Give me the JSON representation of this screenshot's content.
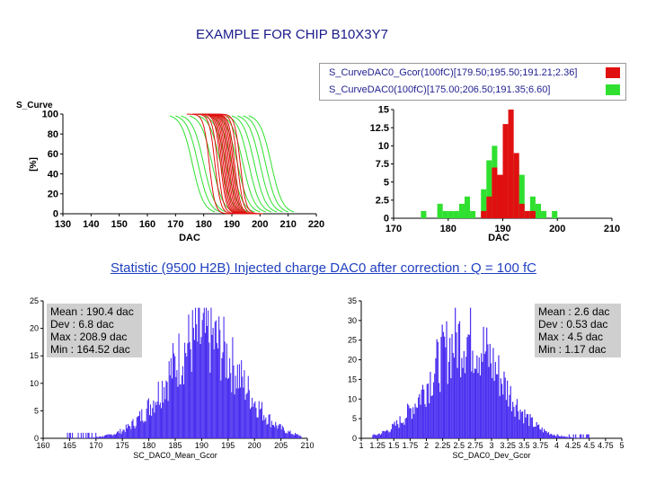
{
  "header": {
    "title": "EXAMPLE FOR CHIP B10X3Y7",
    "stat_title": "Statistic (9500 H2B) Injected charge DAC0 after correction : Q = 100 fC"
  },
  "legend": {
    "items": [
      {
        "label": "S_CurveDAC0_Gcor(100fC)[179.50;195.50;191.21;2.36]",
        "color": "#e01010"
      },
      {
        "label": "S_CurveDAC0(100fC)[175.00;206.50;191.35;6.60]",
        "color": "#30e030"
      }
    ]
  },
  "stats_left": {
    "mean": "Mean : 190.4 dac",
    "dev": "Dev : 6.8 dac",
    "max": "Max : 208.9 dac",
    "min": "Min : 164.52 dac"
  },
  "stats_right": {
    "mean": "Mean : 2.6 dac",
    "dev": "Dev : 0.53 dac",
    "max": "Max : 4.5 dac",
    "min": "Min : 1.17 dac"
  },
  "chart_data": [
    {
      "type": "line",
      "title": "S_Curve",
      "xlabel": "DAC",
      "ylabel": "[%]",
      "xlim": [
        130,
        220
      ],
      "ylim": [
        0,
        100
      ],
      "xticks": [
        130,
        140,
        150,
        160,
        170,
        180,
        190,
        200,
        210,
        220
      ],
      "yticks": [
        0,
        20,
        40,
        60,
        80,
        100
      ],
      "series": [
        {
          "color": "#e01010",
          "midpoints": [
            182,
            184,
            185,
            186,
            186.5,
            187,
            187.5,
            188,
            188.5,
            189,
            189.5,
            190,
            190.5,
            191,
            192,
            193
          ]
        },
        {
          "color": "#30e030",
          "midpoints": [
            176,
            178,
            180,
            183,
            186,
            188,
            190,
            192,
            194,
            196,
            198,
            200,
            202,
            204
          ]
        }
      ]
    },
    {
      "type": "bar",
      "xlabel": "DAC",
      "xlim": [
        170,
        210
      ],
      "ylim": [
        0,
        15
      ],
      "xticks": [
        170,
        180,
        190,
        200,
        210
      ],
      "yticks": [
        0,
        2.5,
        5,
        7.5,
        10,
        12.5,
        15
      ],
      "bin_width": 1,
      "series": [
        {
          "color": "#30e030",
          "bins": [
            [
              175,
              1
            ],
            [
              178,
              2
            ],
            [
              179,
              1
            ],
            [
              180,
              1
            ],
            [
              181,
              1
            ],
            [
              182,
              2
            ],
            [
              183,
              3
            ],
            [
              184,
              1
            ],
            [
              186,
              4
            ],
            [
              187,
              8
            ],
            [
              188,
              10
            ],
            [
              189,
              3
            ],
            [
              190,
              4
            ],
            [
              191,
              5
            ],
            [
              192,
              8
            ],
            [
              193,
              6
            ],
            [
              194,
              1
            ],
            [
              195,
              3
            ],
            [
              196,
              2
            ],
            [
              197,
              1
            ],
            [
              199,
              1
            ]
          ]
        },
        {
          "color": "#e01010",
          "bins": [
            [
              186,
              1
            ],
            [
              187,
              3
            ],
            [
              188,
              7
            ],
            [
              189,
              6
            ],
            [
              190,
              13
            ],
            [
              191,
              15
            ],
            [
              192,
              9
            ],
            [
              193,
              2
            ],
            [
              194,
              1
            ],
            [
              195,
              1
            ]
          ]
        }
      ]
    },
    {
      "type": "bar",
      "xlabel": "SC_DAC0_Mean_Gcor",
      "xlim": [
        160,
        210
      ],
      "ylim": [
        0,
        25
      ],
      "xticks": [
        160,
        165,
        170,
        175,
        180,
        185,
        190,
        195,
        200,
        205,
        210
      ],
      "yticks": [
        0,
        5,
        10,
        15,
        20,
        25
      ],
      "color": "#4a2ef0",
      "distribution": {
        "mean": 190.4,
        "dev": 6.8,
        "min": 164.52,
        "max": 208.9,
        "peak": 20
      }
    },
    {
      "type": "bar",
      "xlabel": "SC_DAC0_Dev_Gcor",
      "xlim": [
        1,
        5
      ],
      "ylim": [
        0,
        35
      ],
      "xticks": [
        1,
        1.25,
        1.5,
        1.75,
        2,
        2.25,
        2.5,
        2.75,
        3,
        3.25,
        3.5,
        3.75,
        4,
        4.25,
        4.5,
        4.75,
        5
      ],
      "yticks": [
        0,
        5,
        10,
        15,
        20,
        25,
        30,
        35
      ],
      "color": "#4a2ef0",
      "distribution": {
        "mean": 2.6,
        "dev": 0.53,
        "min": 1.17,
        "max": 4.5,
        "peak": 28
      }
    }
  ]
}
